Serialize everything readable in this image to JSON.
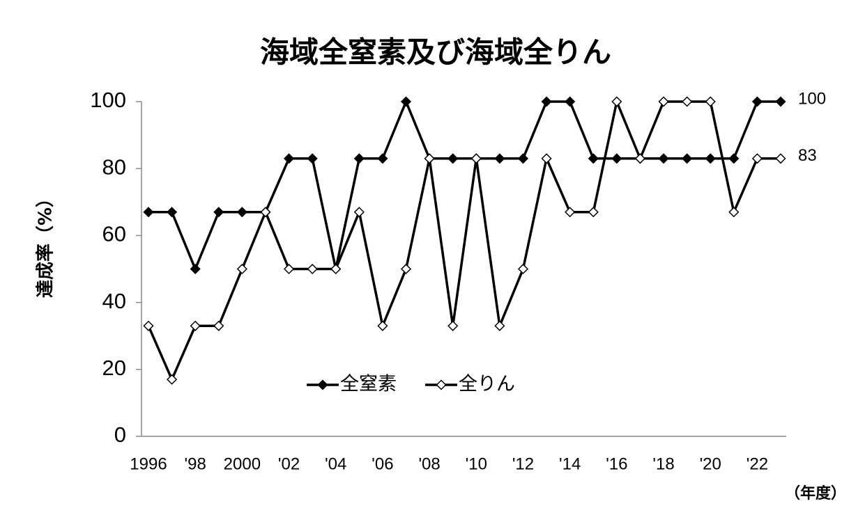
{
  "chart_data": {
    "type": "line",
    "title": "海域全窒素及び海域全りん",
    "y_label": "達成率（%）",
    "x_label": "（年度）",
    "categories": [
      "1996",
      null,
      "'98",
      null,
      "2000",
      null,
      "'02",
      null,
      "'04",
      null,
      "'06",
      null,
      "'08",
      null,
      "'10",
      null,
      "'12",
      null,
      "'14",
      null,
      "'16",
      null,
      "'18",
      null,
      "'20",
      null,
      "'22",
      null
    ],
    "series": [
      {
        "name": "全窒素",
        "color": "#000000",
        "marker": "filled-diamond",
        "label_last": true,
        "values": [
          67,
          67,
          50,
          67,
          67,
          67,
          83,
          83,
          50,
          83,
          83,
          100,
          83,
          83,
          83,
          83,
          83,
          100,
          100,
          83,
          83,
          83,
          83,
          83,
          83,
          83,
          100,
          100
        ]
      },
      {
        "name": "全りん",
        "color": "#000000",
        "marker": "open-diamond",
        "label_last": true,
        "values": [
          33,
          17,
          33,
          33,
          50,
          67,
          50,
          50,
          50,
          67,
          33,
          50,
          83,
          33,
          83,
          33,
          50,
          83,
          67,
          67,
          100,
          83,
          100,
          100,
          100,
          67,
          83,
          83
        ]
      }
    ],
    "ylim": [
      0,
      100
    ],
    "yticks": [
      0,
      20,
      40,
      60,
      80,
      100
    ],
    "grid": false,
    "legend": "center"
  }
}
